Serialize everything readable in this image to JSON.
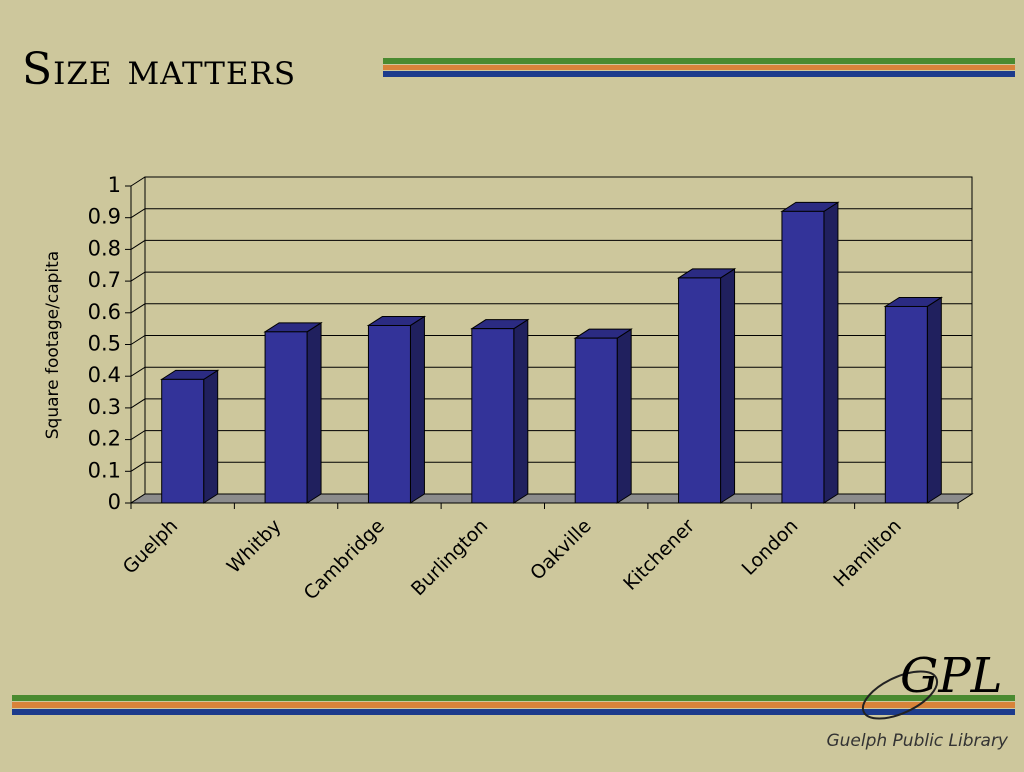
{
  "chart_data": {
    "type": "bar",
    "title": "Size matters",
    "y_label": "Square footage/capita",
    "categories": [
      "Guelph",
      "Whitby",
      "Cambridge",
      "Burlington",
      "Oakville",
      "Kitchener",
      "London",
      "Hamilton"
    ],
    "values": [
      0.39,
      0.54,
      0.56,
      0.55,
      0.52,
      0.71,
      0.92,
      0.62
    ],
    "color": "#333399",
    "ylim": [
      0,
      1
    ],
    "yticks": [
      0,
      0.1,
      0.2,
      0.3,
      0.4,
      0.5,
      0.6,
      0.7,
      0.8,
      0.9,
      1
    ],
    "grid": true
  },
  "logo": {
    "mark": "GPL",
    "caption": "Guelph Public Library"
  }
}
